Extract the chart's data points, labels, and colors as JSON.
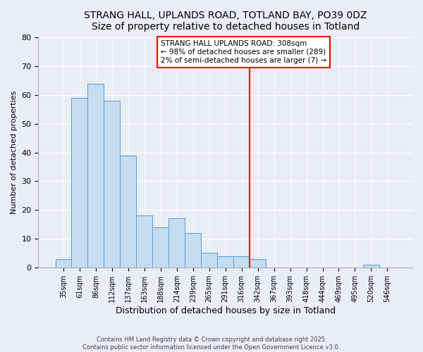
{
  "title": "STRANG HALL, UPLANDS ROAD, TOTLAND BAY, PO39 0DZ",
  "subtitle": "Size of property relative to detached houses in Totland",
  "xlabel": "Distribution of detached houses by size in Totland",
  "ylabel": "Number of detached properties",
  "bar_labels": [
    "35sqm",
    "61sqm",
    "86sqm",
    "112sqm",
    "137sqm",
    "163sqm",
    "188sqm",
    "214sqm",
    "239sqm",
    "265sqm",
    "291sqm",
    "316sqm",
    "342sqm",
    "367sqm",
    "393sqm",
    "418sqm",
    "444sqm",
    "469sqm",
    "495sqm",
    "520sqm",
    "546sqm"
  ],
  "bar_values": [
    3,
    59,
    64,
    58,
    39,
    18,
    14,
    17,
    12,
    5,
    4,
    4,
    3,
    0,
    0,
    0,
    0,
    0,
    0,
    1,
    0
  ],
  "bar_color": "#c5ddf0",
  "bar_edge_color": "#5b9bd5",
  "vline_x_index": 11.5,
  "vline_color": "red",
  "annotation_line1": "STRANG HALL UPLANDS ROAD: 308sqm",
  "annotation_line2": "← 98% of detached houses are smaller (289)",
  "annotation_line3": "2% of semi-detached houses are larger (7) →",
  "annotation_box_color": "white",
  "annotation_box_edge_color": "red",
  "ylim": [
    0,
    80
  ],
  "yticks": [
    0,
    10,
    20,
    30,
    40,
    50,
    60,
    70,
    80
  ],
  "background_color": "#e8eef5",
  "grid_color": "#ffffff",
  "footer_line1": "Contains HM Land Registry data © Crown copyright and database right 2025.",
  "footer_line2": "Contains public sector information licensed under the Open Government Licence v3.0."
}
